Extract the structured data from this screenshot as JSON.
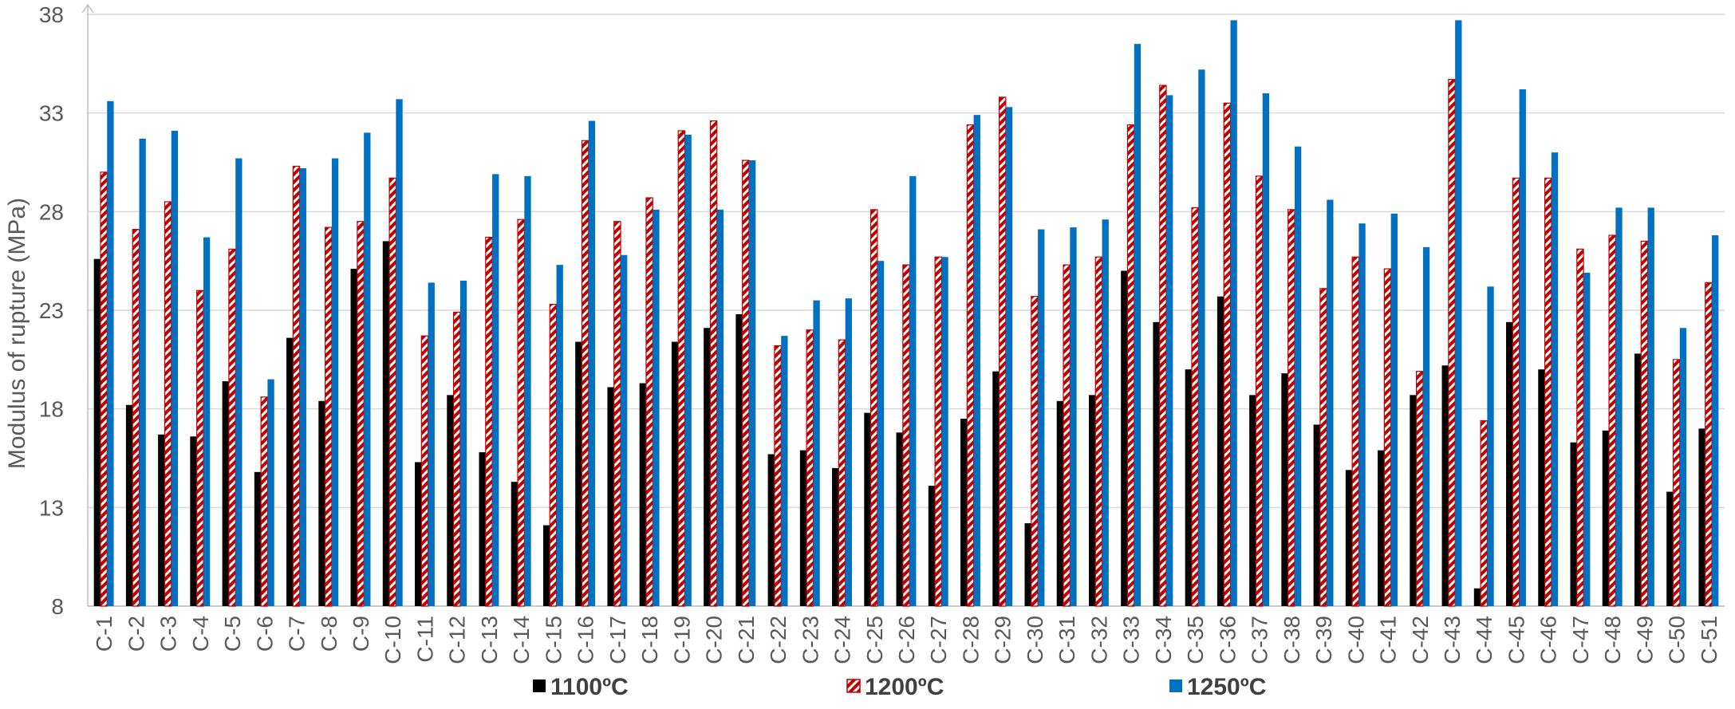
{
  "chart_data": {
    "type": "bar",
    "title": "",
    "xlabel": "",
    "ylabel": "Modulus of rupture (MPa)",
    "ylim": [
      8,
      38
    ],
    "yticks": [
      8,
      13,
      18,
      23,
      28,
      33,
      38
    ],
    "grid": "horizontal",
    "legend_position": "bottom",
    "categories": [
      "C-1",
      "C-2",
      "C-3",
      "C-4",
      "C-5",
      "C-6",
      "C-7",
      "C-8",
      "C-9",
      "C-10",
      "C-11",
      "C-12",
      "C-13",
      "C-14",
      "C-15",
      "C-16",
      "C-17",
      "C-18",
      "C-19",
      "C-20",
      "C-21",
      "C-22",
      "C-23",
      "C-24",
      "C-25",
      "C-26",
      "C-27",
      "C-28",
      "C-29",
      "C-30",
      "C-31",
      "C-32",
      "C-33",
      "C-34",
      "C-35",
      "C-36",
      "C-37",
      "C-38",
      "C-39",
      "C-40",
      "C-41",
      "C-42",
      "C-43",
      "C-44",
      "C-45",
      "C-46",
      "C-47",
      "C-48",
      "C-49",
      "C-50",
      "C-51"
    ],
    "series": [
      {
        "name": "1100ºC",
        "color": "#000000",
        "pattern": "solid",
        "values": [
          25.6,
          18.2,
          16.7,
          16.6,
          19.4,
          14.8,
          21.6,
          18.4,
          25.1,
          26.5,
          15.3,
          18.7,
          15.8,
          14.3,
          12.1,
          21.4,
          19.1,
          19.3,
          21.4,
          22.1,
          22.8,
          15.7,
          15.9,
          15.0,
          17.8,
          16.8,
          14.1,
          17.5,
          19.9,
          12.2,
          18.4,
          18.7,
          25.0,
          22.4,
          20.0,
          23.7,
          18.7,
          19.8,
          17.2,
          14.9,
          15.9,
          18.7,
          20.2,
          8.9,
          22.4,
          20.0,
          16.3,
          16.9,
          20.8,
          13.8,
          17.0
        ]
      },
      {
        "name": "1200ºC",
        "color": "#c00000",
        "pattern": "hatched",
        "values": [
          30.0,
          27.1,
          28.5,
          24.0,
          26.1,
          18.6,
          30.3,
          27.2,
          27.5,
          29.7,
          21.7,
          22.9,
          26.7,
          27.6,
          23.3,
          31.6,
          27.5,
          28.7,
          32.1,
          32.6,
          30.6,
          21.2,
          22.0,
          21.5,
          28.1,
          25.3,
          25.7,
          32.4,
          33.8,
          23.7,
          25.3,
          25.7,
          32.4,
          34.4,
          28.2,
          33.5,
          29.8,
          28.1,
          24.1,
          25.7,
          25.1,
          19.9,
          34.7,
          17.4,
          29.7,
          29.7,
          26.1,
          26.8,
          26.5,
          20.5,
          24.4
        ]
      },
      {
        "name": "1250ºC",
        "color": "#0070c0",
        "pattern": "solid",
        "values": [
          33.6,
          31.7,
          32.1,
          26.7,
          30.7,
          19.5,
          30.2,
          30.7,
          32.0,
          33.7,
          24.4,
          24.5,
          29.9,
          29.8,
          25.3,
          32.6,
          25.8,
          28.1,
          31.9,
          28.1,
          30.6,
          21.7,
          23.5,
          23.6,
          25.5,
          29.8,
          25.7,
          32.9,
          33.3,
          27.1,
          27.2,
          27.6,
          36.5,
          33.9,
          35.2,
          37.7,
          34.0,
          31.3,
          28.6,
          27.4,
          27.9,
          26.2,
          37.7,
          24.2,
          34.2,
          31.0,
          24.9,
          28.2,
          28.2,
          22.1,
          26.8
        ]
      }
    ]
  }
}
